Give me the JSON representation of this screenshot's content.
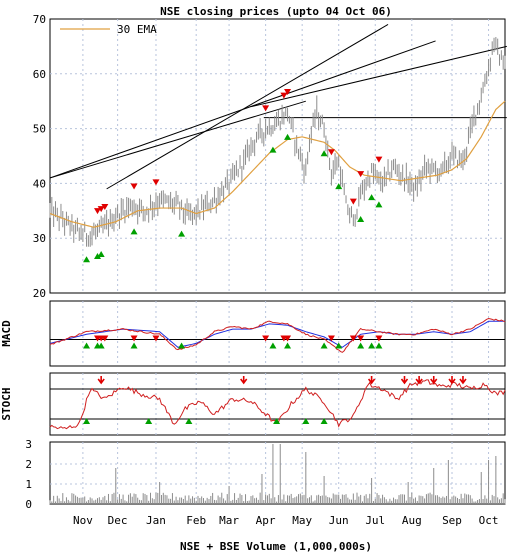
{
  "chart_data": {
    "type": "line",
    "title": "NSE closing prices (upto 04 Oct 06)",
    "xlabel": "NSE + BSE Volume (1,000,000s)",
    "x_tick_labels": [
      "Nov",
      "Dec",
      "Jan",
      "Feb",
      "Mar",
      "Apr",
      "May",
      "Jun",
      "Jul",
      "Aug",
      "Sep",
      "Oct"
    ],
    "price_panel": {
      "ylim": [
        20,
        70
      ],
      "y_ticks": [
        "20",
        "30",
        "40",
        "50",
        "60",
        "70"
      ],
      "legend": "30 EMA",
      "legend_position": "top-left",
      "grid": true,
      "price_anchors": [
        [
          0,
          35
        ],
        [
          8,
          33
        ],
        [
          16,
          31
        ],
        [
          22,
          30.5
        ],
        [
          30,
          32
        ],
        [
          36,
          34
        ],
        [
          44,
          36
        ],
        [
          52,
          35
        ],
        [
          60,
          37
        ],
        [
          70,
          36
        ],
        [
          76,
          34
        ],
        [
          82,
          35
        ],
        [
          90,
          37
        ],
        [
          98,
          40
        ],
        [
          106,
          44
        ],
        [
          112,
          48
        ],
        [
          118,
          50
        ],
        [
          124,
          51
        ],
        [
          130,
          53
        ],
        [
          134,
          48
        ],
        [
          138,
          44
        ],
        [
          140,
          42
        ],
        [
          142,
          48
        ],
        [
          146,
          53
        ],
        [
          150,
          50
        ],
        [
          154,
          42
        ],
        [
          158,
          44
        ],
        [
          162,
          36
        ],
        [
          166,
          33
        ],
        [
          170,
          38
        ],
        [
          176,
          42
        ],
        [
          182,
          40
        ],
        [
          188,
          43
        ],
        [
          194,
          41
        ],
        [
          200,
          39
        ],
        [
          206,
          43
        ],
        [
          214,
          42
        ],
        [
          220,
          45
        ],
        [
          226,
          44
        ],
        [
          232,
          52
        ],
        [
          236,
          56
        ],
        [
          240,
          61
        ],
        [
          243,
          66
        ],
        [
          246,
          63
        ],
        [
          249,
          62
        ]
      ],
      "ema_anchors": [
        [
          0,
          34.5
        ],
        [
          12,
          33
        ],
        [
          24,
          32
        ],
        [
          36,
          33
        ],
        [
          48,
          35
        ],
        [
          60,
          35.5
        ],
        [
          72,
          35.5
        ],
        [
          80,
          34.5
        ],
        [
          90,
          35.5
        ],
        [
          100,
          38.5
        ],
        [
          110,
          42
        ],
        [
          120,
          45.5
        ],
        [
          130,
          48
        ],
        [
          138,
          48.5
        ],
        [
          144,
          48
        ],
        [
          150,
          47.5
        ],
        [
          156,
          46
        ],
        [
          164,
          43
        ],
        [
          172,
          41.5
        ],
        [
          182,
          41
        ],
        [
          192,
          40.5
        ],
        [
          202,
          41
        ],
        [
          212,
          41.5
        ],
        [
          220,
          42.5
        ],
        [
          228,
          44.5
        ],
        [
          236,
          48.5
        ],
        [
          244,
          53.5
        ],
        [
          249,
          55
        ]
      ],
      "trend_lines": [
        [
          [
            0,
            41
          ],
          [
            140,
            55
          ]
        ],
        [
          [
            31,
            39
          ],
          [
            185,
            69
          ]
        ],
        [
          [
            0,
            41
          ],
          [
            211,
            66
          ]
        ],
        [
          [
            110,
            54
          ],
          [
            250,
            65
          ]
        ],
        [
          [
            117,
            52
          ],
          [
            250,
            52
          ]
        ]
      ],
      "sell_signal_days": [
        26,
        28,
        30,
        46,
        58,
        118,
        128,
        130,
        154,
        166,
        170,
        180
      ],
      "buy_signal_days": [
        20,
        26,
        28,
        46,
        72,
        122,
        130,
        150,
        158,
        170,
        176,
        180
      ]
    },
    "macd_panel": {
      "label": "MACD",
      "macd_anchors": [
        [
          0,
          -2
        ],
        [
          20,
          3
        ],
        [
          40,
          4
        ],
        [
          60,
          2
        ],
        [
          70,
          -4
        ],
        [
          80,
          -2
        ],
        [
          90,
          3
        ],
        [
          100,
          5
        ],
        [
          110,
          4
        ],
        [
          120,
          7
        ],
        [
          130,
          6
        ],
        [
          140,
          2
        ],
        [
          150,
          0
        ],
        [
          160,
          -5
        ],
        [
          170,
          4
        ],
        [
          180,
          3
        ],
        [
          190,
          2
        ],
        [
          200,
          2
        ],
        [
          210,
          4
        ],
        [
          220,
          2
        ],
        [
          230,
          4
        ],
        [
          240,
          8
        ],
        [
          249,
          7
        ]
      ],
      "signal_anchors": [
        [
          0,
          -1.5
        ],
        [
          20,
          2
        ],
        [
          40,
          4
        ],
        [
          60,
          3
        ],
        [
          70,
          -3
        ],
        [
          80,
          -1.5
        ],
        [
          90,
          2
        ],
        [
          100,
          4
        ],
        [
          110,
          4
        ],
        [
          120,
          6
        ],
        [
          130,
          5.5
        ],
        [
          140,
          3
        ],
        [
          150,
          1
        ],
        [
          160,
          -3
        ],
        [
          170,
          2
        ],
        [
          180,
          3
        ],
        [
          190,
          2
        ],
        [
          200,
          2
        ],
        [
          210,
          3
        ],
        [
          220,
          2
        ],
        [
          230,
          3
        ],
        [
          240,
          7
        ],
        [
          249,
          7
        ]
      ]
    },
    "stoch_panel": {
      "label": "STOCH",
      "upper_level": 80,
      "lower_level": 20,
      "stoch_anchors": [
        [
          0,
          5
        ],
        [
          8,
          0
        ],
        [
          16,
          10
        ],
        [
          22,
          80
        ],
        [
          30,
          60
        ],
        [
          40,
          85
        ],
        [
          50,
          70
        ],
        [
          60,
          60
        ],
        [
          68,
          10
        ],
        [
          74,
          40
        ],
        [
          82,
          55
        ],
        [
          90,
          30
        ],
        [
          100,
          60
        ],
        [
          110,
          55
        ],
        [
          118,
          30
        ],
        [
          124,
          10
        ],
        [
          132,
          50
        ],
        [
          140,
          80
        ],
        [
          150,
          55
        ],
        [
          158,
          10
        ],
        [
          166,
          25
        ],
        [
          174,
          90
        ],
        [
          182,
          80
        ],
        [
          190,
          60
        ],
        [
          198,
          90
        ],
        [
          206,
          95
        ],
        [
          214,
          85
        ],
        [
          222,
          90
        ],
        [
          230,
          80
        ],
        [
          238,
          90
        ],
        [
          244,
          70
        ],
        [
          249,
          75
        ]
      ],
      "sell_signal_days": [
        28,
        106,
        176,
        194,
        202,
        210,
        220,
        226
      ],
      "buy_signal_days": [
        20,
        54,
        76,
        124,
        140,
        150
      ]
    },
    "volume_panel": {
      "ylim": [
        0,
        3
      ],
      "y_ticks": [
        "0",
        "1",
        "2",
        "3"
      ],
      "spikes": [
        [
          36,
          1.8
        ],
        [
          60,
          1.1
        ],
        [
          98,
          0.9
        ],
        [
          116,
          1.5
        ],
        [
          122,
          3
        ],
        [
          126,
          3
        ],
        [
          140,
          2.6
        ],
        [
          150,
          1.4
        ],
        [
          176,
          1.3
        ],
        [
          196,
          1.1
        ],
        [
          210,
          1.8
        ],
        [
          218,
          2.2
        ],
        [
          236,
          1.6
        ],
        [
          240,
          2.2
        ],
        [
          244,
          2.4
        ]
      ]
    }
  }
}
